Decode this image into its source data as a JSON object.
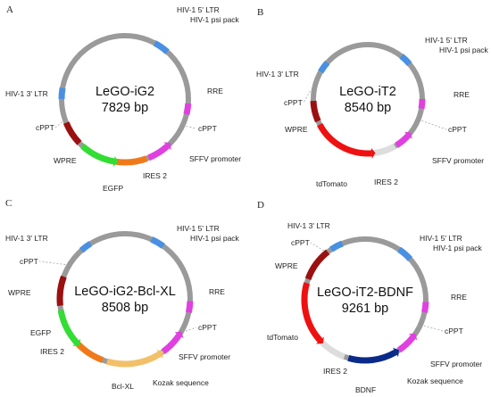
{
  "colors": {
    "backbone": "#9a9a9a",
    "ltr": "#4a90e2",
    "rre": "#e040e0",
    "cppt": "#9a9a9a",
    "wpre": "#9b1010",
    "egfp": "#33dd33",
    "ires": "#f07a1a",
    "sffv": "#e040e0",
    "tdtomato": "#ee1111",
    "tdtomato_light": "#dddddd",
    "bclxl": "#f2c068",
    "bdnf": "#0a2a8a",
    "leader": "#999999"
  },
  "panels": [
    {
      "id": "A",
      "letter": "A",
      "name": "LeGO-iG2",
      "size": "7829 bp",
      "labels": {
        "ltr5": "HIV-1 5' LTR",
        "psi": "HIV-1 psi pack",
        "rre": "RRE",
        "cppt_right": "cPPT",
        "sffv": "SFFV promoter",
        "ires": "IRES 2",
        "egfp": "EGFP",
        "wpre": "WPRE",
        "cppt_left": "cPPT",
        "ltr3": "HIV-1 3' LTR"
      }
    },
    {
      "id": "B",
      "letter": "B",
      "name": "LeGO-iT2",
      "size": "8540 bp",
      "labels": {
        "ltr5": "HIV-1 5' LTR",
        "psi": "HIV-1 psi pack",
        "rre": "RRE",
        "cppt_right": "cPPT",
        "sffv": "SFFV promoter",
        "ires": "IRES 2",
        "tdtomato": "tdTomato",
        "wpre": "WPRE",
        "cppt_left": "cPPT",
        "ltr3": "HIV-1 3' LTR"
      }
    },
    {
      "id": "C",
      "letter": "C",
      "name": "LeGO-iG2-Bcl-XL",
      "size": "8508 bp",
      "labels": {
        "ltr5": "HIV-1 5' LTR",
        "psi": "HIV-1 psi pack",
        "rre": "RRE",
        "cppt_right": "cPPT",
        "sffv": "SFFV promoter",
        "kozak": "Kozak sequence",
        "bclxl": "Bcl-XL",
        "ires": "IRES 2",
        "egfp": "EGFP",
        "wpre": "WPRE",
        "cppt_left": "cPPT",
        "ltr3": "HIV-1 3' LTR"
      }
    },
    {
      "id": "D",
      "letter": "D",
      "name": "LeGO-iT2-BDNF",
      "size": "9261 bp",
      "labels": {
        "ltr5": "HIV-1 5' LTR",
        "psi": "HIV-1 psi pack",
        "rre": "RRE",
        "cppt_right": "cPPT",
        "sffv": "SFFV promoter",
        "kozak": "Kozak sequence",
        "bdnf": "BDNF",
        "ires": "IRES 2",
        "tdtomato": "tdTomato",
        "wpre": "WPRE",
        "cppt_left": "cPPT",
        "ltr3": "HIV-1 3' LTR"
      }
    }
  ]
}
